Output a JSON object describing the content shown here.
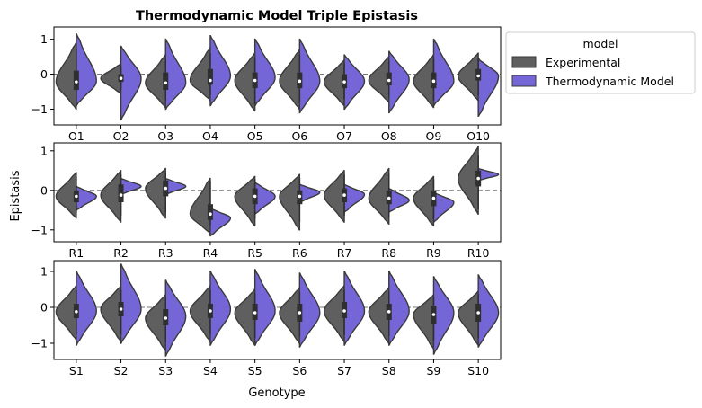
{
  "chart_data": {
    "type": "violin",
    "title": "Thermodynamic Model Triple Epistasis",
    "ylabel": "Epistasis",
    "xlabel": "Genotype",
    "legend": {
      "title": "model",
      "placement": "outside-right",
      "entries": [
        "Experimental",
        "Thermodynamic Model"
      ]
    },
    "colors": {
      "Experimental": "#5f5f5f",
      "Thermodynamic Model": "#7466d6",
      "edge": "#3a3a3a",
      "refline": "#777777"
    },
    "reference_line": 0,
    "panels": [
      {
        "categories": [
          "O1",
          "O2",
          "O3",
          "O4",
          "O5",
          "O6",
          "O7",
          "O8",
          "O9",
          "O10"
        ],
        "ylim": [
          -1.45,
          1.35
        ],
        "yticks": [
          "-1",
          "0",
          "1"
        ],
        "series": [
          {
            "name": "Experimental",
            "median": [
              -0.22,
              -0.12,
              -0.25,
              -0.18,
              -0.18,
              -0.2,
              -0.22,
              -0.18,
              -0.2,
              -0.05
            ],
            "q1": [
              -0.45,
              -0.22,
              -0.45,
              -0.3,
              -0.4,
              -0.4,
              -0.4,
              -0.32,
              -0.4,
              -0.18
            ],
            "q3": [
              0.1,
              0.0,
              0.05,
              0.15,
              0.05,
              0.05,
              0.0,
              0.05,
              0.05,
              0.15
            ],
            "min": [
              -1.0,
              -0.55,
              -0.95,
              -0.75,
              -1.05,
              -1.0,
              -0.9,
              -0.8,
              -0.95,
              -0.75
            ],
            "max": [
              0.9,
              0.3,
              0.55,
              0.75,
              0.6,
              0.7,
              0.4,
              0.5,
              0.55,
              0.6
            ]
          },
          {
            "name": "Thermodynamic Model",
            "median": [
              -0.2,
              -0.12,
              -0.25,
              -0.05,
              -0.1,
              -0.2,
              -0.2,
              -0.15,
              -0.2,
              -0.05
            ],
            "min": [
              -0.9,
              -1.3,
              -1.0,
              -0.9,
              -0.9,
              -1.1,
              -1.0,
              -1.1,
              -0.9,
              -1.2
            ],
            "max": [
              1.15,
              0.8,
              1.0,
              1.1,
              1.0,
              1.0,
              0.55,
              0.65,
              1.0,
              0.45
            ]
          }
        ]
      },
      {
        "categories": [
          "R1",
          "R2",
          "R3",
          "R4",
          "R5",
          "R6",
          "R7",
          "R8",
          "R9",
          "R10"
        ],
        "ylim": [
          -1.3,
          1.2
        ],
        "yticks": [
          "-1",
          "0",
          "1"
        ],
        "series": [
          {
            "name": "Experimental",
            "median": [
              -0.15,
              -0.12,
              0.05,
              -0.6,
              -0.15,
              -0.15,
              -0.12,
              -0.2,
              -0.2,
              0.3
            ],
            "q1": [
              -0.3,
              -0.3,
              -0.15,
              -0.75,
              -0.35,
              -0.35,
              -0.3,
              -0.35,
              -0.4,
              0.1
            ],
            "q3": [
              0.0,
              0.15,
              0.25,
              -0.35,
              0.05,
              0.0,
              0.05,
              0.0,
              0.0,
              0.5
            ],
            "min": [
              -0.7,
              -0.8,
              -0.7,
              -1.1,
              -0.9,
              -1.0,
              -0.8,
              -0.85,
              -0.9,
              -0.6
            ],
            "max": [
              0.45,
              0.5,
              0.55,
              0.3,
              0.35,
              0.4,
              0.5,
              0.55,
              0.35,
              1.1
            ]
          },
          {
            "name": "Thermodynamic Model",
            "median": [
              -0.15,
              0.1,
              0.1,
              -0.7,
              -0.15,
              -0.05,
              -0.1,
              -0.25,
              -0.3,
              0.4
            ],
            "min": [
              -0.5,
              -0.1,
              -0.1,
              -1.15,
              -0.6,
              -0.3,
              -0.55,
              -0.55,
              -0.8,
              0.25
            ],
            "max": [
              0.1,
              0.3,
              0.3,
              -0.45,
              0.2,
              0.15,
              0.15,
              0.05,
              -0.05,
              0.55
            ]
          }
        ]
      },
      {
        "categories": [
          "S1",
          "S2",
          "S3",
          "S4",
          "S5",
          "S6",
          "S7",
          "S8",
          "S9",
          "S10"
        ],
        "ylim": [
          -1.45,
          1.3
        ],
        "yticks": [
          "-1",
          "0",
          "1"
        ],
        "series": [
          {
            "name": "Experimental",
            "median": [
              -0.12,
              -0.05,
              -0.3,
              -0.1,
              -0.15,
              -0.15,
              -0.1,
              -0.12,
              -0.2,
              -0.15
            ],
            "q1": [
              -0.3,
              -0.25,
              -0.5,
              -0.3,
              -0.35,
              -0.4,
              -0.3,
              -0.35,
              -0.45,
              -0.4
            ],
            "q3": [
              0.1,
              0.15,
              -0.05,
              0.1,
              0.1,
              0.1,
              0.15,
              0.1,
              0.05,
              0.1
            ],
            "min": [
              -0.9,
              -0.95,
              -1.2,
              -0.95,
              -1.05,
              -1.0,
              -0.95,
              -1.0,
              -1.15,
              -1.05
            ],
            "max": [
              0.6,
              0.6,
              0.35,
              0.6,
              0.5,
              0.55,
              0.6,
              0.55,
              0.35,
              0.45
            ]
          },
          {
            "name": "Thermodynamic Model",
            "median": [
              -0.1,
              -0.05,
              -0.25,
              -0.05,
              -0.1,
              -0.15,
              -0.1,
              -0.1,
              -0.15,
              -0.15
            ],
            "min": [
              -1.05,
              -1.0,
              -1.35,
              -1.05,
              -1.05,
              -1.1,
              -1.05,
              -1.05,
              -1.3,
              -1.1
            ],
            "max": [
              1.0,
              1.2,
              0.75,
              1.0,
              1.05,
              0.95,
              1.0,
              1.0,
              0.85,
              0.9
            ]
          }
        ]
      }
    ]
  }
}
